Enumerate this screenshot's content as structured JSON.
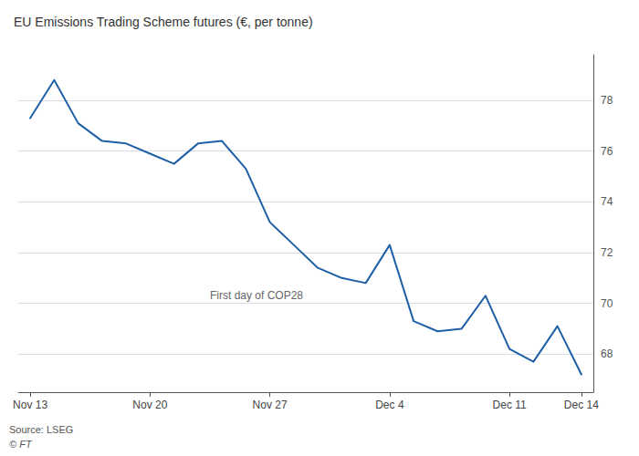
{
  "chart_data": {
    "type": "line",
    "title": "EU Emissions Trading Scheme futures (€, per tonne)",
    "categories": [
      "Nov 13",
      null,
      null,
      null,
      null,
      "Nov 20",
      null,
      null,
      null,
      null,
      "Nov 27",
      null,
      null,
      null,
      null,
      "Dec 4",
      null,
      null,
      null,
      null,
      "Dec 11",
      null,
      null,
      "Dec 14"
    ],
    "values": [
      77.3,
      78.8,
      77.1,
      76.4,
      76.3,
      75.9,
      75.5,
      76.3,
      76.4,
      75.3,
      73.2,
      72.3,
      71.4,
      71.0,
      70.8,
      72.3,
      69.3,
      68.9,
      69.0,
      70.3,
      68.2,
      67.7,
      69.1,
      67.2
    ],
    "color": "#1f5fa6",
    "ylim": [
      66.5,
      79.8
    ],
    "yticks": [
      68,
      70,
      72,
      74,
      76,
      78
    ],
    "grid": true,
    "annotation": "First day of COP28",
    "source": "Source: LSEG",
    "footer": "© FT"
  }
}
